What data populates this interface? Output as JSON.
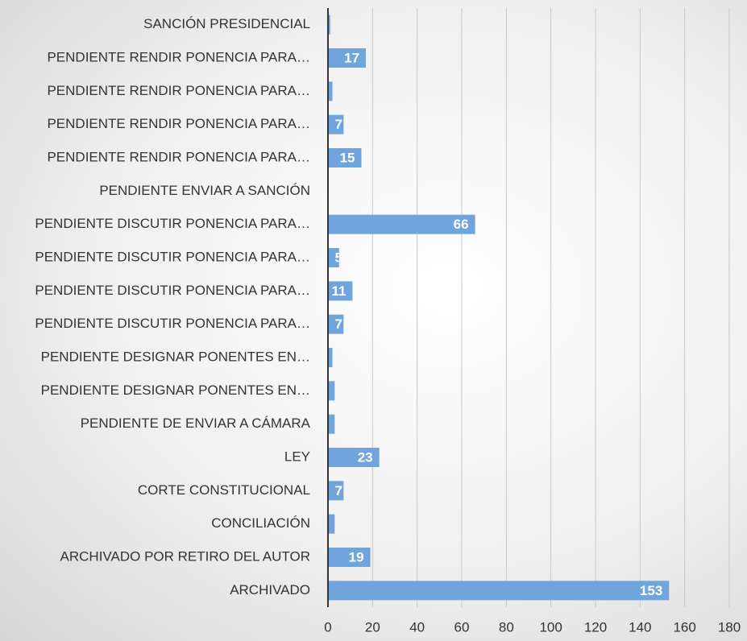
{
  "chart_data": {
    "type": "barh",
    "categories": [
      "SANCIÓN PRESIDENCIAL",
      "PENDIENTE RENDIR PONENCIA PARA…",
      "PENDIENTE RENDIR PONENCIA PARA…",
      "PENDIENTE RENDIR PONENCIA PARA…",
      "PENDIENTE RENDIR PONENCIA PARA…",
      "PENDIENTE ENVIAR A SANCIÓN",
      "PENDIENTE DISCUTIR PONENCIA PARA…",
      "PENDIENTE DISCUTIR PONENCIA PARA…",
      "PENDIENTE DISCUTIR PONENCIA PARA…",
      "PENDIENTE DISCUTIR PONENCIA PARA…",
      "PENDIENTE DESIGNAR PONENTES EN…",
      "PENDIENTE DESIGNAR PONENTES EN…",
      "PENDIENTE DE ENVIAR A CÁMARA",
      "LEY",
      "CORTE CONSTITUCIONAL",
      "CONCILIACIÓN",
      "ARCHIVADO POR RETIRO DEL AUTOR",
      "ARCHIVADO"
    ],
    "values": [
      1,
      17,
      2,
      7,
      15,
      0,
      66,
      5,
      11,
      7,
      2,
      3,
      3,
      23,
      7,
      3,
      19,
      153
    ],
    "color": "#6fa5dc",
    "xlim": [
      0,
      180
    ],
    "xticks": [
      0,
      20,
      40,
      60,
      80,
      100,
      120,
      140,
      160,
      180
    ],
    "grid": true
  }
}
